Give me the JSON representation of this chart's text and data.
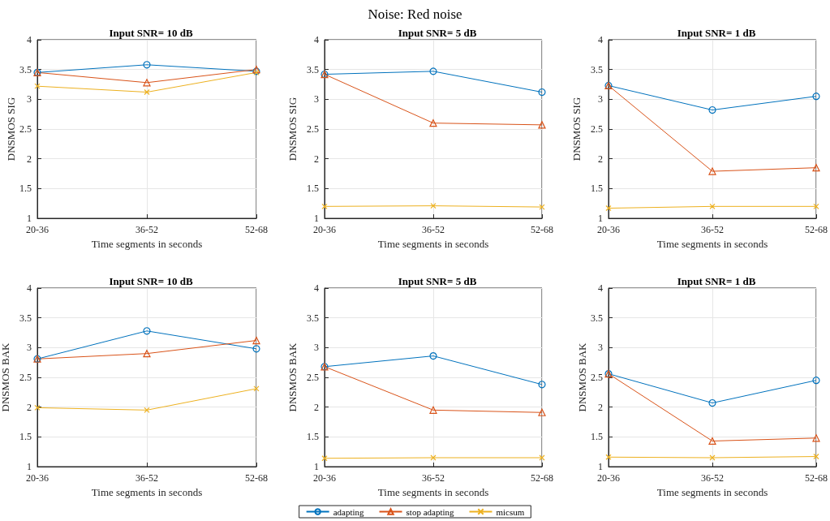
{
  "chart_data": [
    {
      "type": "line",
      "title": "Input SNR= 10 dB",
      "xlabel": "Time segments in seconds",
      "ylabel": "DNSMOS SIG",
      "annotations": [
        "Noise: Red noise"
      ],
      "categories": [
        "20-36",
        "36-52",
        "52-68"
      ],
      "ylim": [
        1,
        4
      ],
      "yticks": [
        1,
        1.5,
        2,
        2.5,
        3,
        3.5,
        4
      ],
      "grid": true,
      "series": [
        {
          "color": "#0072bd",
          "marker": "circle",
          "values": [
            3.45,
            3.58,
            3.47
          ]
        },
        {
          "color": "#d95319",
          "marker": "triangle",
          "values": [
            3.45,
            3.28,
            3.5
          ]
        },
        {
          "color": "#edb120",
          "marker": "cross",
          "values": [
            3.22,
            3.12,
            3.45
          ]
        }
      ]
    },
    {
      "type": "line",
      "title": "Input SNR= 5 dB",
      "xlabel": "Time segments in seconds",
      "ylabel": "DNSMOS SIG",
      "categories": [
        "20-36",
        "36-52",
        "52-68"
      ],
      "ylim": [
        1,
        4
      ],
      "yticks": [
        1,
        1.5,
        2,
        2.5,
        3,
        3.5,
        4
      ],
      "grid": true,
      "series": [
        {
          "color": "#0072bd",
          "marker": "circle",
          "values": [
            3.42,
            3.47,
            3.12
          ]
        },
        {
          "color": "#d95319",
          "marker": "triangle",
          "values": [
            3.42,
            2.6,
            2.57
          ]
        },
        {
          "color": "#edb120",
          "marker": "cross",
          "values": [
            1.2,
            1.21,
            1.19
          ]
        }
      ]
    },
    {
      "type": "line",
      "title": "Input SNR= 1 dB",
      "xlabel": "Time segments in seconds",
      "ylabel": "DNSMOS SIG",
      "categories": [
        "20-36",
        "36-52",
        "52-68"
      ],
      "ylim": [
        1,
        4
      ],
      "yticks": [
        1,
        1.5,
        2,
        2.5,
        3,
        3.5,
        4
      ],
      "grid": true,
      "series": [
        {
          "color": "#0072bd",
          "marker": "circle",
          "values": [
            3.23,
            2.82,
            3.05
          ]
        },
        {
          "color": "#d95319",
          "marker": "triangle",
          "values": [
            3.23,
            1.79,
            1.85
          ]
        },
        {
          "color": "#edb120",
          "marker": "cross",
          "values": [
            1.17,
            1.2,
            1.2
          ]
        }
      ]
    },
    {
      "type": "line",
      "title": "Input SNR= 10 dB",
      "xlabel": "Time segments in seconds",
      "ylabel": "DNSMOS BAK",
      "categories": [
        "20-36",
        "36-52",
        "52-68"
      ],
      "ylim": [
        1,
        4
      ],
      "yticks": [
        1,
        1.5,
        2,
        2.5,
        3,
        3.5,
        4
      ],
      "grid": true,
      "series": [
        {
          "color": "#0072bd",
          "marker": "circle",
          "values": [
            2.81,
            3.28,
            2.98
          ]
        },
        {
          "color": "#d95319",
          "marker": "triangle",
          "values": [
            2.81,
            2.9,
            3.12
          ]
        },
        {
          "color": "#edb120",
          "marker": "cross",
          "values": [
            1.99,
            1.95,
            2.31
          ]
        }
      ]
    },
    {
      "type": "line",
      "title": "Input SNR= 5 dB",
      "xlabel": "Time segments in seconds",
      "ylabel": "DNSMOS BAK",
      "categories": [
        "20-36",
        "36-52",
        "52-68"
      ],
      "ylim": [
        1,
        4
      ],
      "yticks": [
        1,
        1.5,
        2,
        2.5,
        3,
        3.5,
        4
      ],
      "grid": true,
      "series": [
        {
          "color": "#0072bd",
          "marker": "circle",
          "values": [
            2.68,
            2.86,
            2.38
          ]
        },
        {
          "color": "#d95319",
          "marker": "triangle",
          "values": [
            2.68,
            1.95,
            1.91
          ]
        },
        {
          "color": "#edb120",
          "marker": "cross",
          "values": [
            1.14,
            1.15,
            1.15
          ]
        }
      ]
    },
    {
      "type": "line",
      "title": "Input SNR= 1 dB",
      "xlabel": "Time segments in seconds",
      "ylabel": "DNSMOS BAK",
      "categories": [
        "20-36",
        "36-52",
        "52-68"
      ],
      "ylim": [
        1,
        4
      ],
      "yticks": [
        1,
        1.5,
        2,
        2.5,
        3,
        3.5,
        4
      ],
      "grid": true,
      "legend": "bottom",
      "series": [
        {
          "name": "adapting",
          "color": "#0072bd",
          "marker": "circle",
          "values": [
            2.56,
            2.07,
            2.45
          ]
        },
        {
          "name": "stop adapting",
          "color": "#d95319",
          "marker": "triangle",
          "values": [
            2.56,
            1.43,
            1.48
          ]
        },
        {
          "name": "micsum",
          "color": "#edb120",
          "marker": "cross",
          "values": [
            1.16,
            1.15,
            1.17
          ]
        }
      ]
    }
  ]
}
